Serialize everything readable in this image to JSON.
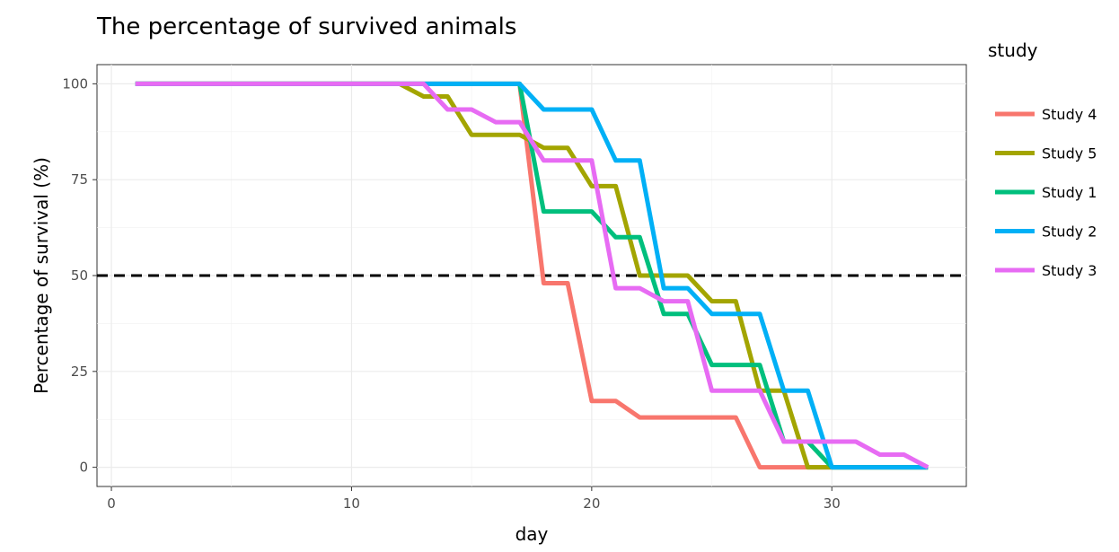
{
  "chart_data": {
    "type": "line",
    "title": "The percentage of survived animals",
    "xlabel": "day",
    "ylabel": "Percentage of survival (%)",
    "xlim": [
      -0.6,
      35.6
    ],
    "ylim": [
      -5,
      105
    ],
    "xticks": [
      0,
      10,
      20,
      30
    ],
    "yticks": [
      0,
      25,
      50,
      75,
      100
    ],
    "grid": true,
    "reference_line": {
      "y": 50,
      "style": "dashed",
      "color": "#000000"
    },
    "legend": {
      "title": "study",
      "position": "right"
    },
    "series": [
      {
        "name": "Study 4",
        "color": "#F8766D",
        "x": [
          1,
          2,
          3,
          4,
          5,
          6,
          7,
          8,
          9,
          10,
          11,
          12,
          13,
          14,
          15,
          16,
          17,
          18,
          19,
          20,
          21,
          22,
          23,
          24,
          25,
          26,
          27,
          28,
          29,
          30,
          31,
          32,
          33,
          34
        ],
        "y": [
          100,
          100,
          100,
          100,
          100,
          100,
          100,
          100,
          100,
          100,
          100,
          100,
          100,
          100,
          100,
          100,
          100,
          48,
          48,
          17.3,
          17.3,
          13,
          13,
          13,
          13,
          13,
          0,
          0,
          0,
          0,
          0,
          0,
          0,
          0
        ]
      },
      {
        "name": "Study 5",
        "color": "#A3A500",
        "x": [
          1,
          2,
          3,
          4,
          5,
          6,
          7,
          8,
          9,
          10,
          11,
          12,
          13,
          14,
          15,
          16,
          17,
          18,
          19,
          20,
          21,
          22,
          23,
          24,
          25,
          26,
          27,
          28,
          29,
          30,
          31,
          32,
          33,
          34
        ],
        "y": [
          100,
          100,
          100,
          100,
          100,
          100,
          100,
          100,
          100,
          100,
          100,
          100,
          96.7,
          96.7,
          86.7,
          86.7,
          86.7,
          83.3,
          83.3,
          73.3,
          73.3,
          50,
          50,
          50,
          43.3,
          43.3,
          20,
          20,
          0,
          0,
          0,
          0,
          0,
          0
        ]
      },
      {
        "name": "Study 1",
        "color": "#00BF7D",
        "x": [
          1,
          2,
          3,
          4,
          5,
          6,
          7,
          8,
          9,
          10,
          11,
          12,
          13,
          14,
          15,
          16,
          17,
          18,
          19,
          20,
          21,
          22,
          23,
          24,
          25,
          26,
          27,
          28,
          29,
          30,
          31,
          32,
          33,
          34
        ],
        "y": [
          100,
          100,
          100,
          100,
          100,
          100,
          100,
          100,
          100,
          100,
          100,
          100,
          100,
          100,
          100,
          100,
          100,
          66.7,
          66.7,
          66.7,
          60,
          60,
          40,
          40,
          26.7,
          26.7,
          26.7,
          6.7,
          6.7,
          0,
          0,
          0,
          0,
          0
        ]
      },
      {
        "name": "Study 2",
        "color": "#00B0F6",
        "x": [
          1,
          2,
          3,
          4,
          5,
          6,
          7,
          8,
          9,
          10,
          11,
          12,
          13,
          14,
          15,
          16,
          17,
          18,
          19,
          20,
          21,
          22,
          23,
          24,
          25,
          26,
          27,
          28,
          29,
          30,
          31,
          32,
          33,
          34
        ],
        "y": [
          100,
          100,
          100,
          100,
          100,
          100,
          100,
          100,
          100,
          100,
          100,
          100,
          100,
          100,
          100,
          100,
          100,
          93.3,
          93.3,
          93.3,
          80,
          80,
          46.7,
          46.7,
          40,
          40,
          40,
          20,
          20,
          0,
          0,
          0,
          0,
          0
        ]
      },
      {
        "name": "Study 3",
        "color": "#E76BF3",
        "x": [
          1,
          2,
          3,
          4,
          5,
          6,
          7,
          8,
          9,
          10,
          11,
          12,
          13,
          14,
          15,
          16,
          17,
          18,
          19,
          20,
          21,
          22,
          23,
          24,
          25,
          26,
          27,
          28,
          29,
          30,
          31,
          32,
          33,
          34
        ],
        "y": [
          100,
          100,
          100,
          100,
          100,
          100,
          100,
          100,
          100,
          100,
          100,
          100,
          100,
          93.3,
          93.3,
          90,
          90,
          80,
          80,
          80,
          46.7,
          46.7,
          43.3,
          43.3,
          20,
          20,
          20,
          6.7,
          6.7,
          6.7,
          6.7,
          3.3,
          3.3,
          0
        ]
      }
    ]
  }
}
